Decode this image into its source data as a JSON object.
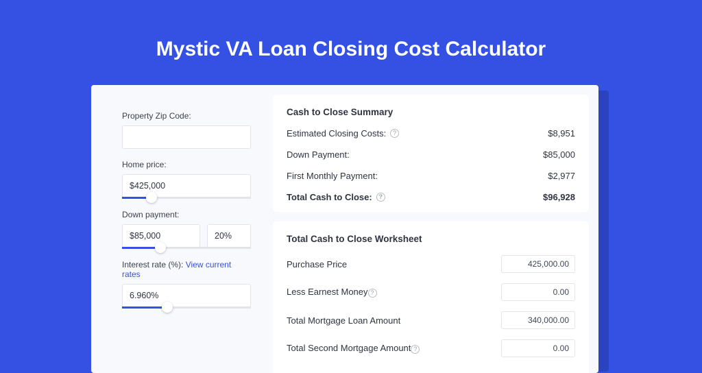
{
  "theme": {
    "page_bg": "#3451e3",
    "card_shadow": "#2b43bf",
    "card_bg": "#f8f9fc",
    "panel_bg": "#ffffff",
    "text": "#2f3440",
    "muted_text": "#3a3f4a",
    "border": "#e2e4ea",
    "accent": "#3451e3",
    "link": "#3451e3"
  },
  "title": "Mystic VA Loan Closing Cost Calculator",
  "form": {
    "zip": {
      "label": "Property Zip Code:",
      "value": ""
    },
    "home_price": {
      "label": "Home price:",
      "value": "$425,000",
      "slider_pct": 23
    },
    "down_payment": {
      "label": "Down payment:",
      "value": "$85,000",
      "percent": "20%",
      "slider_pct": 30
    },
    "interest_rate": {
      "label": "Interest rate (%):",
      "link_text": "View current rates",
      "value": "6.960%",
      "slider_pct": 35
    }
  },
  "summary": {
    "title": "Cash to Close Summary",
    "rows": [
      {
        "label": "Estimated Closing Costs:",
        "help": true,
        "value": "$8,951",
        "bold": false
      },
      {
        "label": "Down Payment:",
        "help": false,
        "value": "$85,000",
        "bold": false
      },
      {
        "label": "First Monthly Payment:",
        "help": false,
        "value": "$2,977",
        "bold": false
      },
      {
        "label": "Total Cash to Close:",
        "help": true,
        "value": "$96,928",
        "bold": true
      }
    ]
  },
  "worksheet": {
    "title": "Total Cash to Close Worksheet",
    "rows": [
      {
        "label": "Purchase Price",
        "help": false,
        "value": "425,000.00"
      },
      {
        "label": "Less Earnest Money",
        "help": true,
        "value": "0.00"
      },
      {
        "label": "Total Mortgage Loan Amount",
        "help": false,
        "value": "340,000.00"
      },
      {
        "label": "Total Second Mortgage Amount",
        "help": true,
        "value": "0.00"
      }
    ]
  }
}
